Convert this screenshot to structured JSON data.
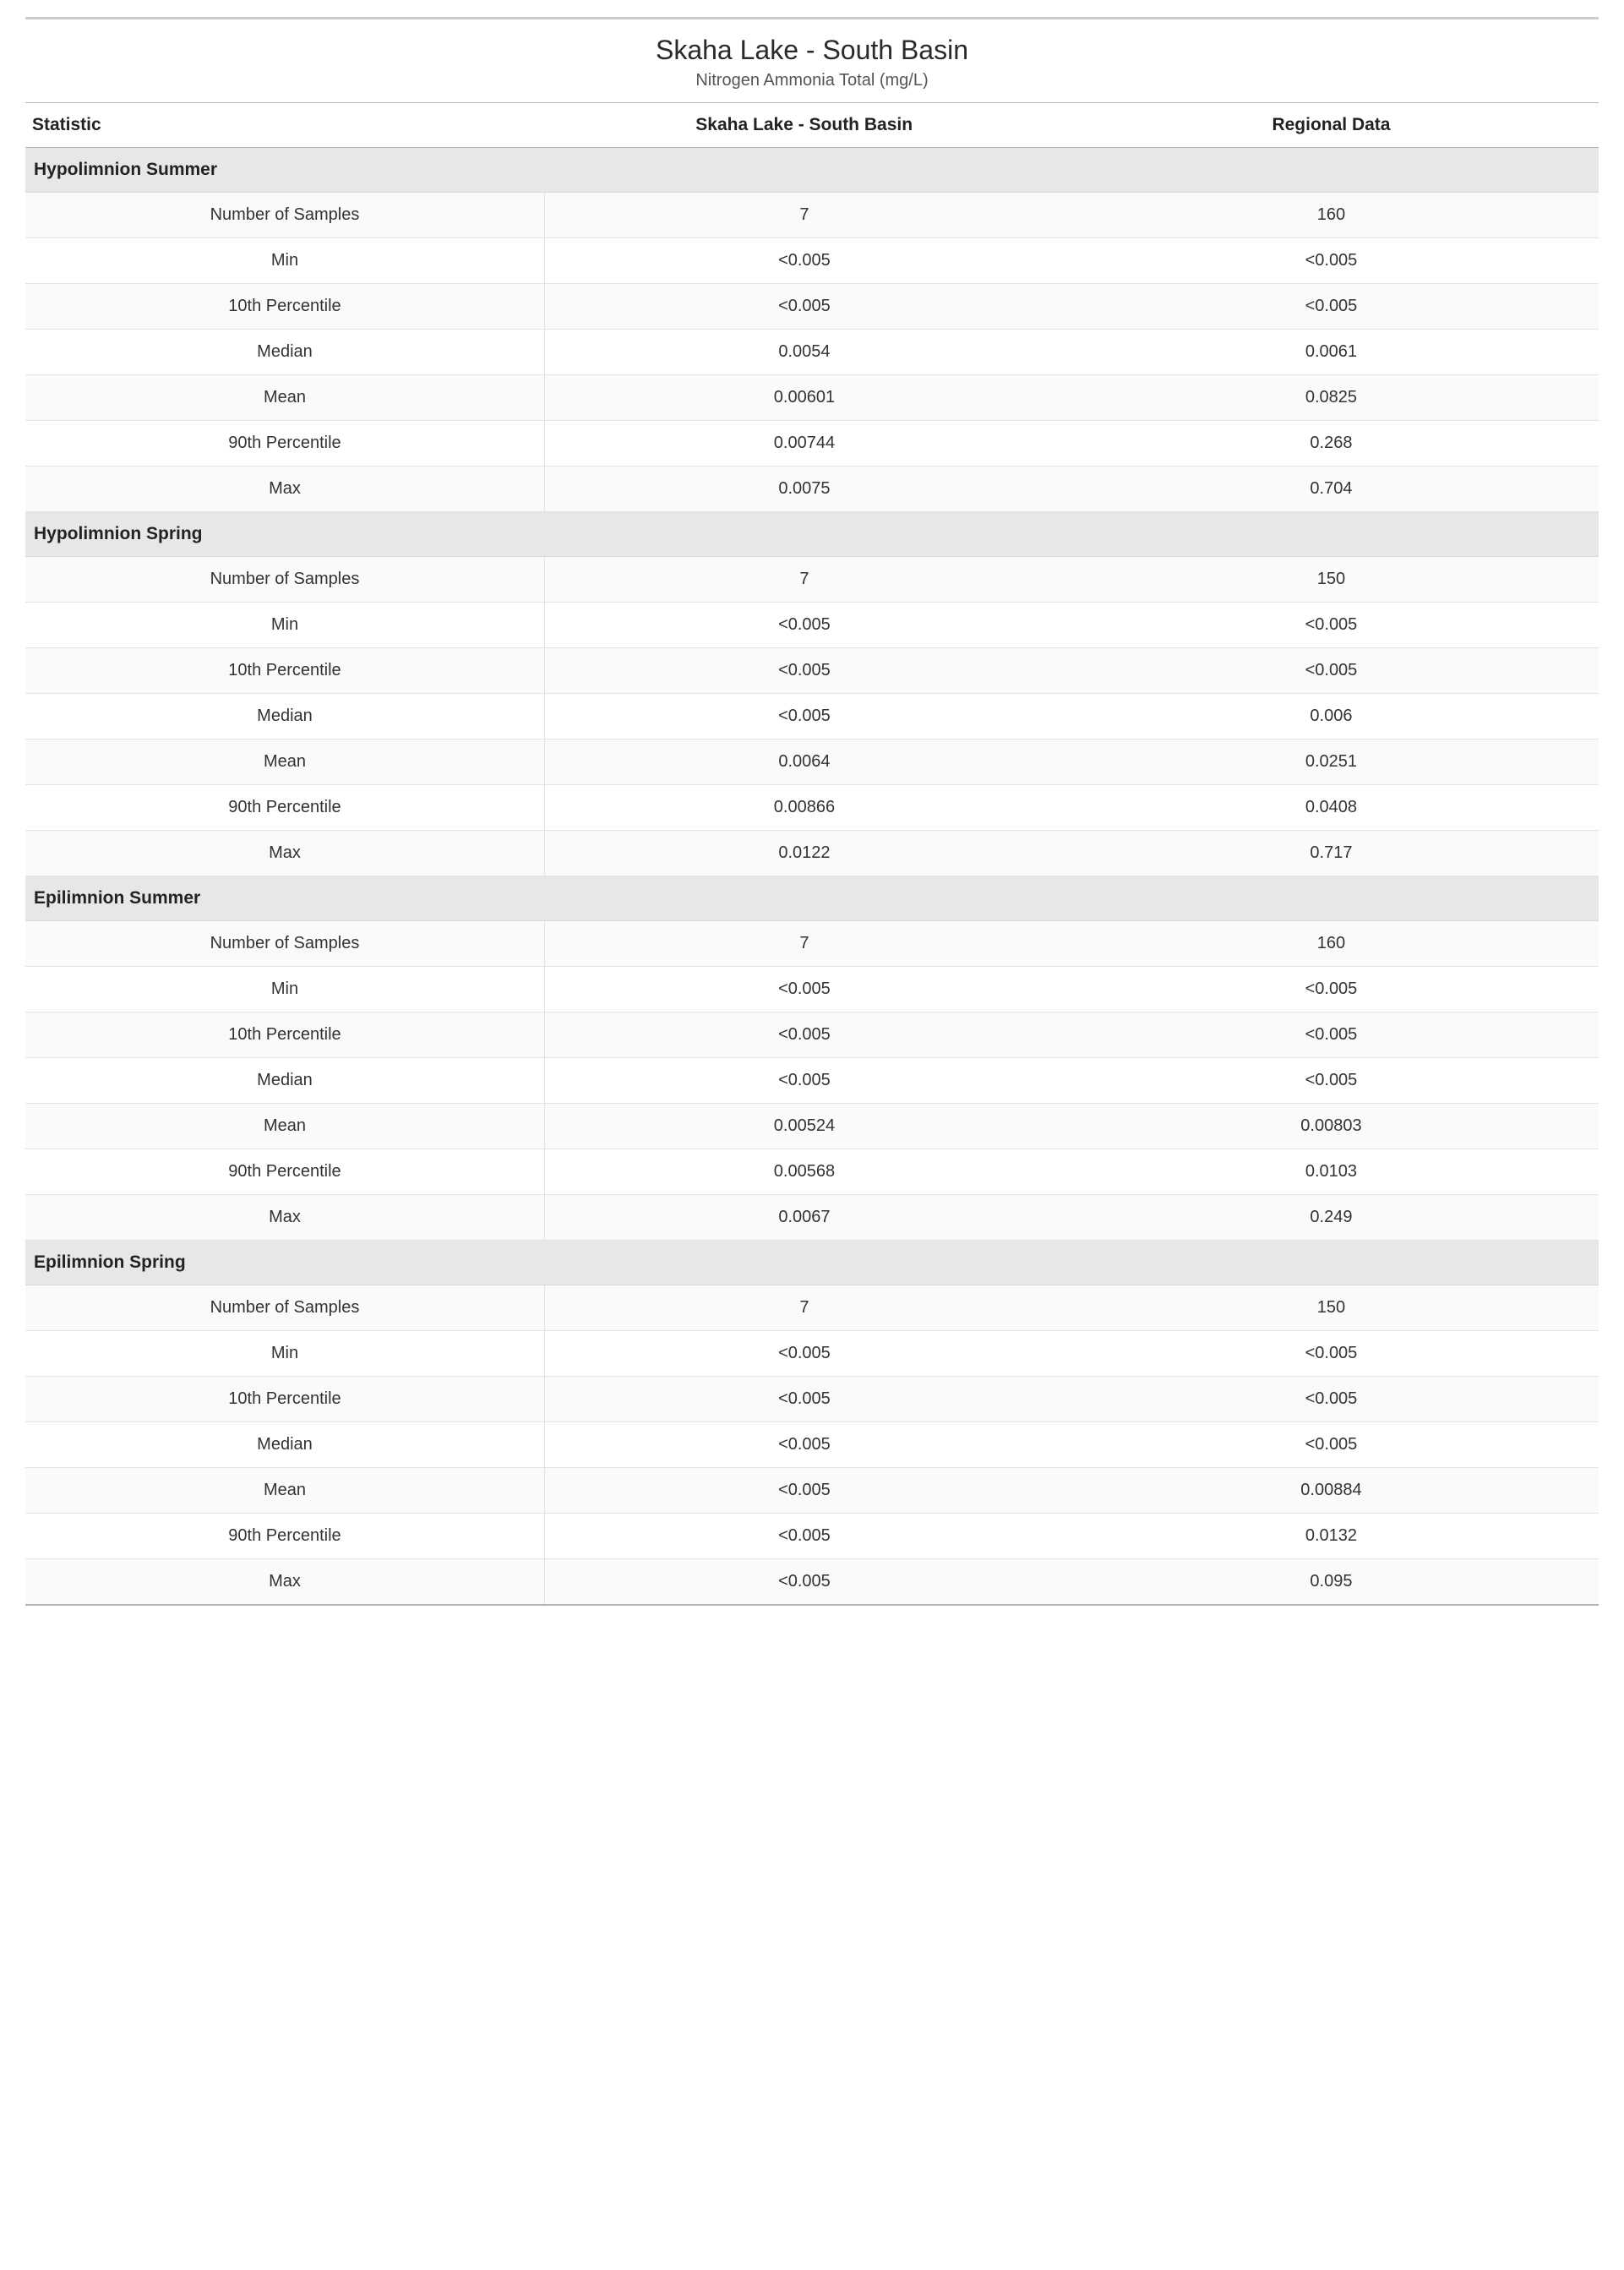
{
  "title": "Skaha Lake - South Basin",
  "subtitle": "Nitrogen Ammonia Total (mg/L)",
  "columns": {
    "statistic": "Statistic",
    "site": "Skaha Lake - South Basin",
    "regional": "Regional Data"
  },
  "stat_labels": [
    "Number of Samples",
    "Min",
    "10th Percentile",
    "Median",
    "Mean",
    "90th Percentile",
    "Max"
  ],
  "sections": [
    {
      "name": "Hypolimnion Summer",
      "rows": [
        {
          "site": "7",
          "regional": "160"
        },
        {
          "site": "<0.005",
          "regional": "<0.005"
        },
        {
          "site": "<0.005",
          "regional": "<0.005"
        },
        {
          "site": "0.0054",
          "regional": "0.0061"
        },
        {
          "site": "0.00601",
          "regional": "0.0825"
        },
        {
          "site": "0.00744",
          "regional": "0.268"
        },
        {
          "site": "0.0075",
          "regional": "0.704"
        }
      ]
    },
    {
      "name": "Hypolimnion Spring",
      "rows": [
        {
          "site": "7",
          "regional": "150"
        },
        {
          "site": "<0.005",
          "regional": "<0.005"
        },
        {
          "site": "<0.005",
          "regional": "<0.005"
        },
        {
          "site": "<0.005",
          "regional": "0.006"
        },
        {
          "site": "0.0064",
          "regional": "0.0251"
        },
        {
          "site": "0.00866",
          "regional": "0.0408"
        },
        {
          "site": "0.0122",
          "regional": "0.717"
        }
      ]
    },
    {
      "name": "Epilimnion Summer",
      "rows": [
        {
          "site": "7",
          "regional": "160"
        },
        {
          "site": "<0.005",
          "regional": "<0.005"
        },
        {
          "site": "<0.005",
          "regional": "<0.005"
        },
        {
          "site": "<0.005",
          "regional": "<0.005"
        },
        {
          "site": "0.00524",
          "regional": "0.00803"
        },
        {
          "site": "0.00568",
          "regional": "0.0103"
        },
        {
          "site": "0.0067",
          "regional": "0.249"
        }
      ]
    },
    {
      "name": "Epilimnion Spring",
      "rows": [
        {
          "site": "7",
          "regional": "150"
        },
        {
          "site": "<0.005",
          "regional": "<0.005"
        },
        {
          "site": "<0.005",
          "regional": "<0.005"
        },
        {
          "site": "<0.005",
          "regional": "<0.005"
        },
        {
          "site": "<0.005",
          "regional": "0.00884"
        },
        {
          "site": "<0.005",
          "regional": "0.0132"
        },
        {
          "site": "<0.005",
          "regional": "0.095"
        }
      ]
    }
  ],
  "colors": {
    "border_top": "#cccccc",
    "header_border": "#b5b5b5",
    "section_bg": "#e7e7e7",
    "row_border": "#e3e3e3",
    "alt_row_bg": "#fafafa",
    "text_primary": "#333333",
    "text_heading": "#2a2a2a"
  },
  "typography": {
    "title_fontsize": 32,
    "subtitle_fontsize": 20,
    "header_fontsize": 21,
    "body_fontsize": 20,
    "font_family": "Segoe UI"
  }
}
